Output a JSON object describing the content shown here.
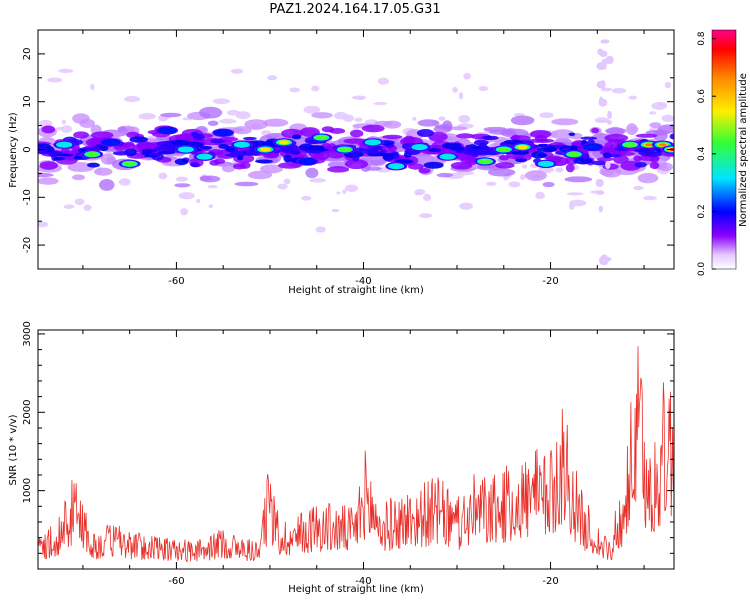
{
  "figure": {
    "title": "PAZ1.2024.164.17.05.G31"
  },
  "chart_data": [
    {
      "type": "heatmap",
      "title": "",
      "xlabel": "Height of straight line (km)",
      "ylabel": "Frequency (Hz)",
      "xlim": [
        -74.8,
        -6.8
      ],
      "ylim": [
        -25,
        25
      ],
      "xticks": [
        -60,
        -40,
        -20
      ],
      "xtick_labels": [
        "-60",
        "-40",
        "-20"
      ],
      "yticks": [
        -20,
        -10,
        0,
        10,
        20
      ],
      "ytick_labels": [
        "-20",
        "-10",
        "0",
        "10",
        "20"
      ],
      "colorbar": {
        "label": "Normalized spectral amplitude",
        "range": [
          0.0,
          0.83
        ],
        "ticks": [
          0.0,
          0.2,
          0.4,
          0.6,
          0.8
        ],
        "tick_labels": [
          "0.0",
          "0.2",
          "0.4",
          "0.6",
          "0.8"
        ],
        "colors": [
          "#ffffff",
          "#8a00ff",
          "#0000ff",
          "#00e5ff",
          "#33ff33",
          "#ffee00",
          "#ff9900",
          "#ff0000",
          "#ff0088"
        ]
      },
      "hotspots": [
        {
          "x": -72.0,
          "y": 1.0,
          "v": 0.35
        },
        {
          "x": -69.0,
          "y": -1.0,
          "v": 0.45
        },
        {
          "x": -67.0,
          "y": 1.5,
          "v": 0.3
        },
        {
          "x": -65.0,
          "y": -3.0,
          "v": 0.45
        },
        {
          "x": -61.0,
          "y": 4.0,
          "v": 0.3
        },
        {
          "x": -59.0,
          "y": 0.0,
          "v": 0.35
        },
        {
          "x": -57.0,
          "y": -1.5,
          "v": 0.4
        },
        {
          "x": -55.0,
          "y": 3.5,
          "v": 0.3
        },
        {
          "x": -53.0,
          "y": 1.0,
          "v": 0.35
        },
        {
          "x": -50.5,
          "y": 0.0,
          "v": 0.55
        },
        {
          "x": -48.5,
          "y": 1.5,
          "v": 0.55
        },
        {
          "x": -46.0,
          "y": -2.5,
          "v": 0.3
        },
        {
          "x": -44.5,
          "y": 2.5,
          "v": 0.45
        },
        {
          "x": -42.0,
          "y": 0.0,
          "v": 0.45
        },
        {
          "x": -39.0,
          "y": 1.5,
          "v": 0.4
        },
        {
          "x": -36.5,
          "y": -3.5,
          "v": 0.35
        },
        {
          "x": -34.0,
          "y": 0.5,
          "v": 0.4
        },
        {
          "x": -31.0,
          "y": -1.5,
          "v": 0.35
        },
        {
          "x": -27.0,
          "y": -2.5,
          "v": 0.45
        },
        {
          "x": -25.0,
          "y": 0.0,
          "v": 0.45
        },
        {
          "x": -23.0,
          "y": 0.5,
          "v": 0.55
        },
        {
          "x": -20.5,
          "y": -3.0,
          "v": 0.4
        },
        {
          "x": -17.5,
          "y": -1.0,
          "v": 0.45
        },
        {
          "x": -15.5,
          "y": 0.5,
          "v": 0.3
        },
        {
          "x": -11.5,
          "y": 1.0,
          "v": 0.5
        },
        {
          "x": -9.5,
          "y": 1.0,
          "v": 0.7
        },
        {
          "x": -8.0,
          "y": 1.0,
          "v": 0.75
        },
        {
          "x": -7.0,
          "y": 0.0,
          "v": 0.8
        }
      ]
    },
    {
      "type": "line",
      "title": "",
      "xlabel": "Height of straight line (km)",
      "ylabel": "SNR (10 * v/v)",
      "xlim": [
        -74.8,
        -6.8
      ],
      "ylim": [
        0,
        3050
      ],
      "xticks": [
        -60,
        -40,
        -20
      ],
      "xtick_labels": [
        "-60",
        "-40",
        "-20"
      ],
      "yticks": [
        1000,
        2000,
        3000
      ],
      "ytick_labels": [
        "1000",
        "2000",
        "3000"
      ],
      "series": [
        {
          "color": "#e8302a",
          "x": [
            -74.8,
            -73,
            -71,
            -70.5,
            -69,
            -67,
            -65,
            -63,
            -61,
            -59,
            -57,
            -55,
            -53,
            -51,
            -50.2,
            -49,
            -47,
            -45,
            -43,
            -41,
            -39.8,
            -38,
            -36,
            -34,
            -32,
            -30,
            -28,
            -26,
            -24,
            -22,
            -20,
            -18.7,
            -17,
            -15,
            -14,
            -13.5,
            -13,
            -12,
            -11,
            -10.5,
            -10,
            -9,
            -8,
            -7.5,
            -6.8
          ],
          "y": [
            400,
            600,
            1200,
            1250,
            450,
            600,
            500,
            450,
            400,
            380,
            380,
            550,
            400,
            400,
            1350,
            650,
            700,
            900,
            850,
            800,
            1550,
            850,
            1000,
            1100,
            1200,
            900,
            1250,
            1200,
            1400,
            1550,
            1500,
            2300,
            1100,
            600,
            400,
            300,
            900,
            1250,
            2800,
            3000,
            1900,
            1600,
            2400,
            2600,
            2500
          ]
        }
      ]
    }
  ]
}
